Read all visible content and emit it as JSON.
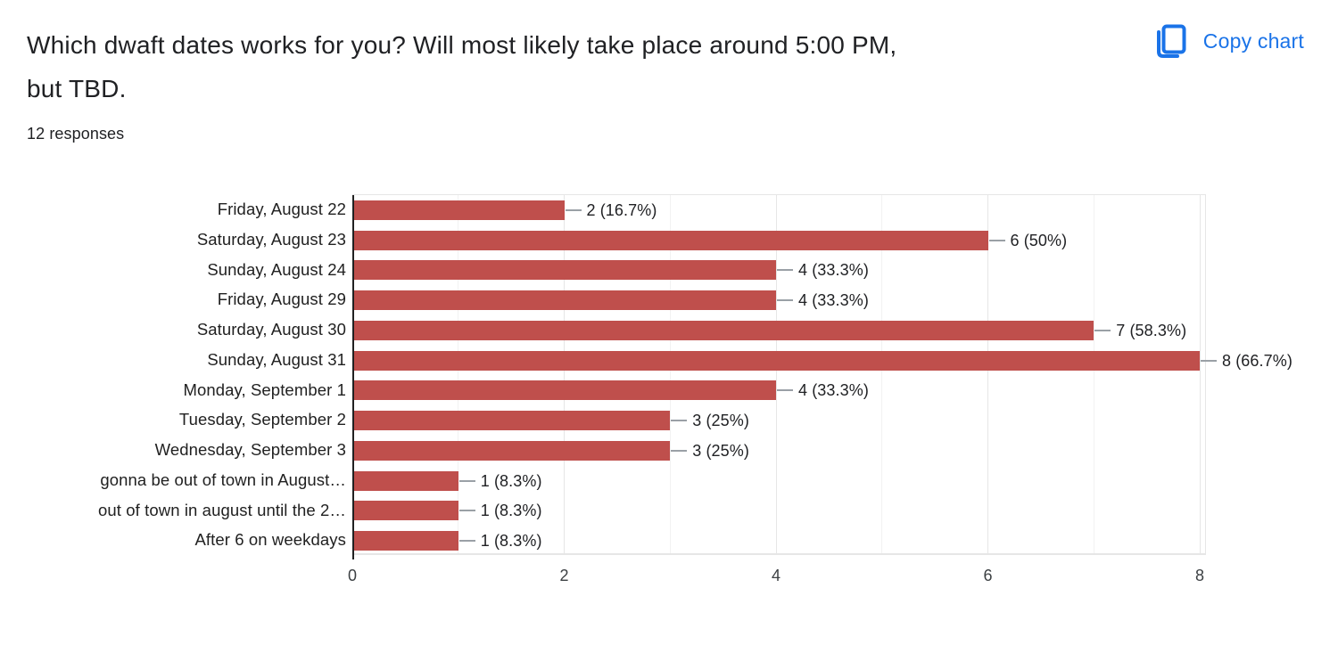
{
  "header": {
    "title": "Which dwaft dates works for you? Will most likely take place around 5:00 PM,\nbut TBD.",
    "responses_count": "12 responses",
    "copy_chart_label": "Copy chart",
    "copy_icon": "copy-icon",
    "accent_blue": "#1a73e8"
  },
  "chart_data": {
    "type": "bar",
    "orientation": "horizontal",
    "title": "",
    "xlabel": "",
    "ylabel": "",
    "categories": [
      "Friday, August 22",
      "Saturday, August 23",
      "Sunday, August 24",
      "Friday, August 29",
      "Saturday, August 30",
      "Sunday, August 31",
      "Monday, September 1",
      "Tuesday, September 2",
      "Wednesday, September 3",
      "gonna be out of town in August…",
      "out of town in august until the 2…",
      "After 6 on weekdays"
    ],
    "values": [
      2,
      6,
      4,
      4,
      7,
      8,
      4,
      3,
      3,
      1,
      1,
      1
    ],
    "value_labels": [
      "2 (16.7%)",
      "6 (50%)",
      "4 (33.3%)",
      "4 (33.3%)",
      "7 (58.3%)",
      "8 (66.7%)",
      "4 (33.3%)",
      "3 (25%)",
      "3 (25%)",
      "1 (8.3%)",
      "1 (8.3%)",
      "1 (8.3%)"
    ],
    "x_ticks": [
      0,
      2,
      4,
      6,
      8
    ],
    "xlim": [
      0,
      8.06
    ],
    "grid": true,
    "legend": "none",
    "bar_color": "#bf4f4c",
    "callout_color": "#9aa0a6",
    "gridline_major_color": "#e6e6e6",
    "gridline_minor_color": "#f2f2f2",
    "axis_text_color": "#3c4043"
  }
}
